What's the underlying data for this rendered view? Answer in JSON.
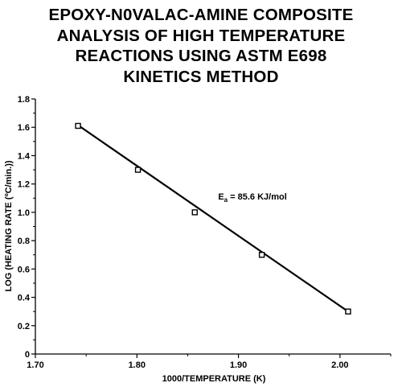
{
  "chart_data": {
    "type": "scatter",
    "title_lines": [
      "EPOXY-N0VALAC-AMINE COMPOSITE",
      "ANALYSIS OF HIGH TEMPERATURE",
      "REACTIONS USING ASTM E698",
      "KINETICS METHOD"
    ],
    "xlabel": "1000/TEMPERATURE (K)",
    "ylabel": "LOG (HEATING RATE (ºC/min.))",
    "xlim": [
      1.7,
      2.05
    ],
    "ylim": [
      0,
      1.8
    ],
    "x_ticks": [
      "1.70",
      "1.80",
      "1.90",
      "2.00"
    ],
    "x_tick_values": [
      1.7,
      1.8,
      1.9,
      2.0
    ],
    "y_ticks": [
      "0",
      "0.2",
      "0.4",
      "0.6",
      "0.8",
      "1.0",
      "1.2",
      "1.4",
      "1.6",
      "1.8"
    ],
    "y_tick_values": [
      0,
      0.2,
      0.4,
      0.6,
      0.8,
      1.0,
      1.2,
      1.4,
      1.6,
      1.8
    ],
    "grid": false,
    "points": [
      {
        "x": 1.742,
        "y": 1.61
      },
      {
        "x": 1.801,
        "y": 1.3
      },
      {
        "x": 1.857,
        "y": 1.0
      },
      {
        "x": 1.923,
        "y": 0.7
      },
      {
        "x": 2.008,
        "y": 0.3
      }
    ],
    "fit_line": {
      "x": [
        1.742,
        2.008
      ],
      "y": [
        1.615,
        0.3
      ]
    },
    "annotation": {
      "main": "E",
      "sub": "a",
      "rest": " = 85.6 KJ/mol",
      "x": 1.88,
      "y": 1.09
    }
  }
}
